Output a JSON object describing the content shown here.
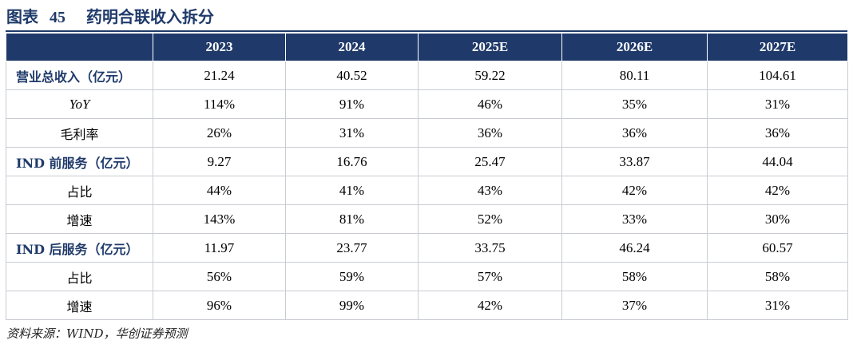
{
  "figure": {
    "label": "图表",
    "number": "45",
    "title": "药明合联收入拆分"
  },
  "table": {
    "columns": [
      "",
      "2023",
      "2024",
      "2025E",
      "2026E",
      "2027E"
    ],
    "rows": [
      {
        "label": "营业总收入（亿元）",
        "kind": "main",
        "values": [
          "21.24",
          "40.52",
          "59.22",
          "80.11",
          "104.61"
        ]
      },
      {
        "label": "YoY",
        "kind": "italic",
        "values": [
          "114%",
          "91%",
          "46%",
          "35%",
          "31%"
        ]
      },
      {
        "label": "毛利率",
        "kind": "sub",
        "values": [
          "26%",
          "31%",
          "36%",
          "36%",
          "36%"
        ]
      },
      {
        "label": "IND 前服务（亿元）",
        "kind": "main",
        "values": [
          "9.27",
          "16.76",
          "25.47",
          "33.87",
          "44.04"
        ]
      },
      {
        "label": "占比",
        "kind": "sub",
        "values": [
          "44%",
          "41%",
          "43%",
          "42%",
          "42%"
        ]
      },
      {
        "label": "增速",
        "kind": "sub",
        "values": [
          "143%",
          "81%",
          "52%",
          "33%",
          "30%"
        ]
      },
      {
        "label": "IND 后服务（亿元）",
        "kind": "main",
        "values": [
          "11.97",
          "23.77",
          "33.75",
          "46.24",
          "60.57"
        ]
      },
      {
        "label": "占比",
        "kind": "sub",
        "values": [
          "56%",
          "59%",
          "57%",
          "58%",
          "58%"
        ]
      },
      {
        "label": "增速",
        "kind": "sub",
        "values": [
          "96%",
          "99%",
          "42%",
          "37%",
          "31%"
        ]
      }
    ]
  },
  "source": "资料来源：WIND，华创证券预测",
  "colors": {
    "header_bg": "#1f3a6a",
    "title_text": "#1f3a6a",
    "grid": "#c9ccd3"
  }
}
